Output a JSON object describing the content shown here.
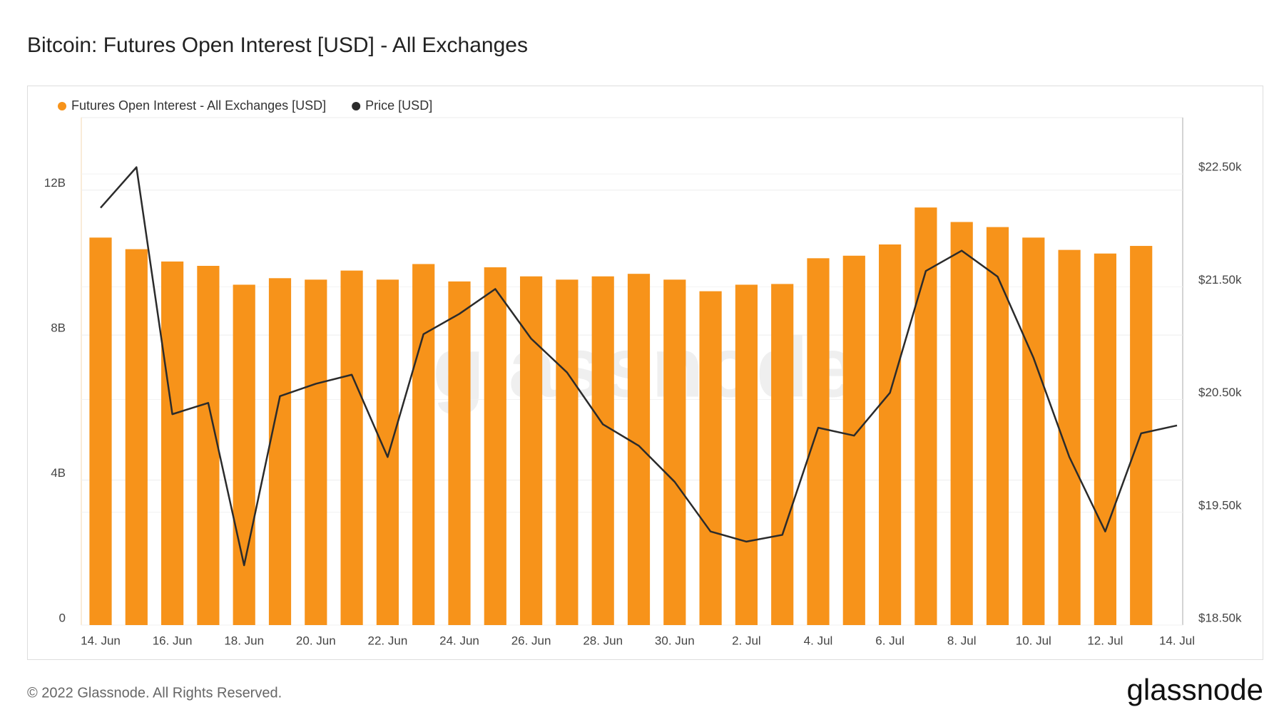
{
  "chart_data": {
    "type": "bar",
    "title": "Bitcoin: Futures Open Interest [USD] - All Exchanges",
    "categories": [
      "14. Jun",
      null,
      "16. Jun",
      null,
      "18. Jun",
      null,
      "20. Jun",
      null,
      "22. Jun",
      null,
      "24. Jun",
      null,
      "26. Jun",
      null,
      "28. Jun",
      null,
      "30. Jun",
      null,
      "2. Jul",
      null,
      "4. Jul",
      null,
      "6. Jul",
      null,
      "8. Jul",
      null,
      "10. Jul",
      null,
      "12. Jul",
      null,
      "14. Jul"
    ],
    "series": [
      {
        "name": "Futures Open Interest - All Exchanges [USD]",
        "type": "bar",
        "color": "#f7931a",
        "axis": "y",
        "values": [
          10690000000,
          10370000000,
          10030000000,
          9910000000,
          9390000000,
          9570000000,
          9530000000,
          9780000000,
          9530000000,
          9960000000,
          9480000000,
          9870000000,
          9620000000,
          9530000000,
          9620000000,
          9690000000,
          9530000000,
          9210000000,
          9390000000,
          9410000000,
          10120000000,
          10190000000,
          10500000000,
          11520000000,
          11120000000,
          10980000000,
          10690000000,
          10350000000,
          10250000000,
          10460000000,
          null
        ]
      },
      {
        "name": "Price [USD]",
        "type": "line",
        "color": "#2b2b2b",
        "axis": "y2",
        "values": [
          22200,
          22560,
          20370,
          20470,
          19030,
          20530,
          20640,
          20720,
          19990,
          21080,
          21260,
          21480,
          21040,
          20740,
          20280,
          20090,
          19770,
          19330,
          19240,
          19300,
          20250,
          20180,
          20560,
          21640,
          21820,
          21590,
          20870,
          19990,
          19330,
          20200,
          20270
        ]
      }
    ],
    "ylim": [
      0,
      14000000000
    ],
    "yticks": [
      0,
      {
        "value": 4000000000,
        "label": "4B"
      },
      {
        "value": 8000000000,
        "label": "8B"
      },
      {
        "value": 12000000000,
        "label": "12B"
      }
    ],
    "y2lim": [
      18500,
      23000
    ],
    "y2ticks": [
      {
        "value": 18500,
        "label": "$18.50k"
      },
      {
        "value": 19500,
        "label": "$19.50k"
      },
      {
        "value": 20500,
        "label": "$20.50k"
      },
      {
        "value": 21500,
        "label": "$21.50k"
      },
      {
        "value": 22500,
        "label": "$22.50k"
      }
    ],
    "grid": true,
    "legend": "top-left",
    "watermark": "glassnode",
    "footer": "© 2022 Glassnode. All Rights Reserved.",
    "logo": "glassnode"
  }
}
